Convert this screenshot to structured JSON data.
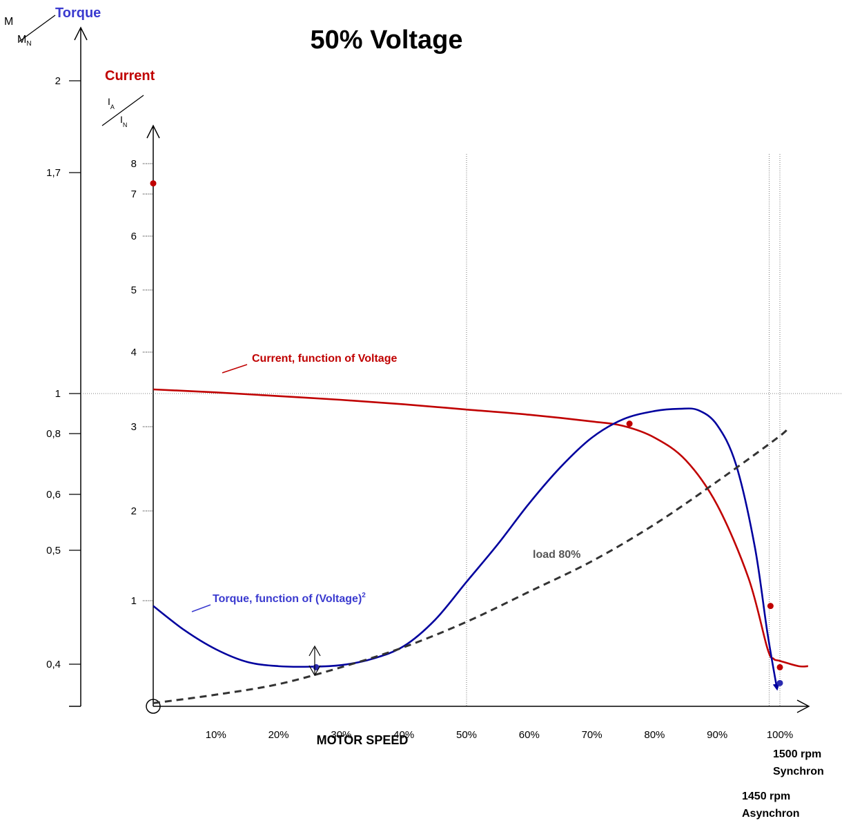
{
  "chart_data": {
    "type": "line",
    "title": "50% Voltage",
    "xlabel": "MOTOR SPEED",
    "x_ticks": [
      "10%",
      "20%",
      "30%",
      "40%",
      "50%",
      "60%",
      "70%",
      "80%",
      "90%",
      "100%"
    ],
    "x_range": [
      0,
      100
    ],
    "torque_axis": {
      "title": "Torque",
      "unit_top": "M",
      "unit_bottom": "N",
      "unit_sub_prefix": "M",
      "ticks": [
        "2",
        "1,7",
        "1",
        "0,8",
        "0,6",
        "0,5",
        "0,4"
      ],
      "tick_values": [
        2.0,
        1.7,
        1.0,
        0.8,
        0.6,
        0.5,
        0.4
      ]
    },
    "current_axis": {
      "title": "Current",
      "unit_top_main": "I",
      "unit_top_sub": "A",
      "unit_bottom_main": "I",
      "unit_bottom_sub": "N",
      "ticks": [
        "8",
        "7",
        "6",
        "5",
        "4",
        "3",
        "2",
        "1"
      ],
      "tick_values": [
        8,
        7,
        6,
        5,
        4,
        3,
        2,
        1
      ]
    },
    "series": [
      {
        "name": "Current, function of Voltage",
        "color": "#c00000",
        "axis": "current",
        "points": [
          [
            0,
            3.5
          ],
          [
            10,
            3.46
          ],
          [
            20,
            3.41
          ],
          [
            30,
            3.36
          ],
          [
            40,
            3.3
          ],
          [
            50,
            3.23
          ],
          [
            60,
            3.16
          ],
          [
            70,
            3.07
          ],
          [
            75,
            3.01
          ],
          [
            80,
            2.87
          ],
          [
            85,
            2.6
          ],
          [
            90,
            2.07
          ],
          [
            95,
            1.25
          ],
          [
            98,
            0.55
          ],
          [
            99,
            0.45
          ],
          [
            100,
            0.43
          ],
          [
            103,
            0.38
          ],
          [
            104.5,
            0.38
          ]
        ]
      },
      {
        "name": "Torque, function of (Voltage)",
        "name_sup": "2",
        "color": "#00009e",
        "axis": "current",
        "points": [
          [
            0,
            0.95
          ],
          [
            5,
            0.72
          ],
          [
            10,
            0.54
          ],
          [
            15,
            0.42
          ],
          [
            20,
            0.38
          ],
          [
            25,
            0.375
          ],
          [
            30,
            0.39
          ],
          [
            35,
            0.45
          ],
          [
            40,
            0.57
          ],
          [
            45,
            0.82
          ],
          [
            50,
            1.21
          ],
          [
            55,
            1.63
          ],
          [
            60,
            2.09
          ],
          [
            65,
            2.52
          ],
          [
            70,
            2.87
          ],
          [
            75,
            3.1
          ],
          [
            80,
            3.21
          ],
          [
            84,
            3.24
          ],
          [
            87,
            3.22
          ],
          [
            90,
            3.02
          ],
          [
            93,
            2.55
          ],
          [
            96,
            1.6
          ],
          [
            98,
            0.7
          ],
          [
            99.5,
            0.18
          ]
        ]
      },
      {
        "name": "load 80%",
        "color": "#333333",
        "dashed": true,
        "axis": "current",
        "points": [
          [
            0,
            0.03
          ],
          [
            10,
            0.11
          ],
          [
            20,
            0.21
          ],
          [
            30,
            0.37
          ],
          [
            40,
            0.56
          ],
          [
            50,
            0.8
          ],
          [
            60,
            1.1
          ],
          [
            70,
            1.44
          ],
          [
            80,
            1.85
          ],
          [
            90,
            2.35
          ],
          [
            100,
            2.89
          ],
          [
            101,
            2.98
          ]
        ]
      }
    ],
    "markers": {
      "current": [
        [
          0,
          7.35
        ],
        [
          76,
          3.04
        ],
        [
          98.5,
          0.95
        ],
        [
          100,
          0.37
        ]
      ],
      "torque": [
        [
          26,
          0.37
        ],
        [
          100,
          0.22
        ]
      ]
    },
    "gridlines": {
      "x": [
        50,
        100
      ],
      "x_extra": [
        98.5
      ]
    },
    "annotations": {
      "rpm_sync_value": "1500 rpm",
      "rpm_sync_label": "Synchron",
      "rpm_async_value": "1450 rpm",
      "rpm_async_label": "Asynchron"
    }
  }
}
